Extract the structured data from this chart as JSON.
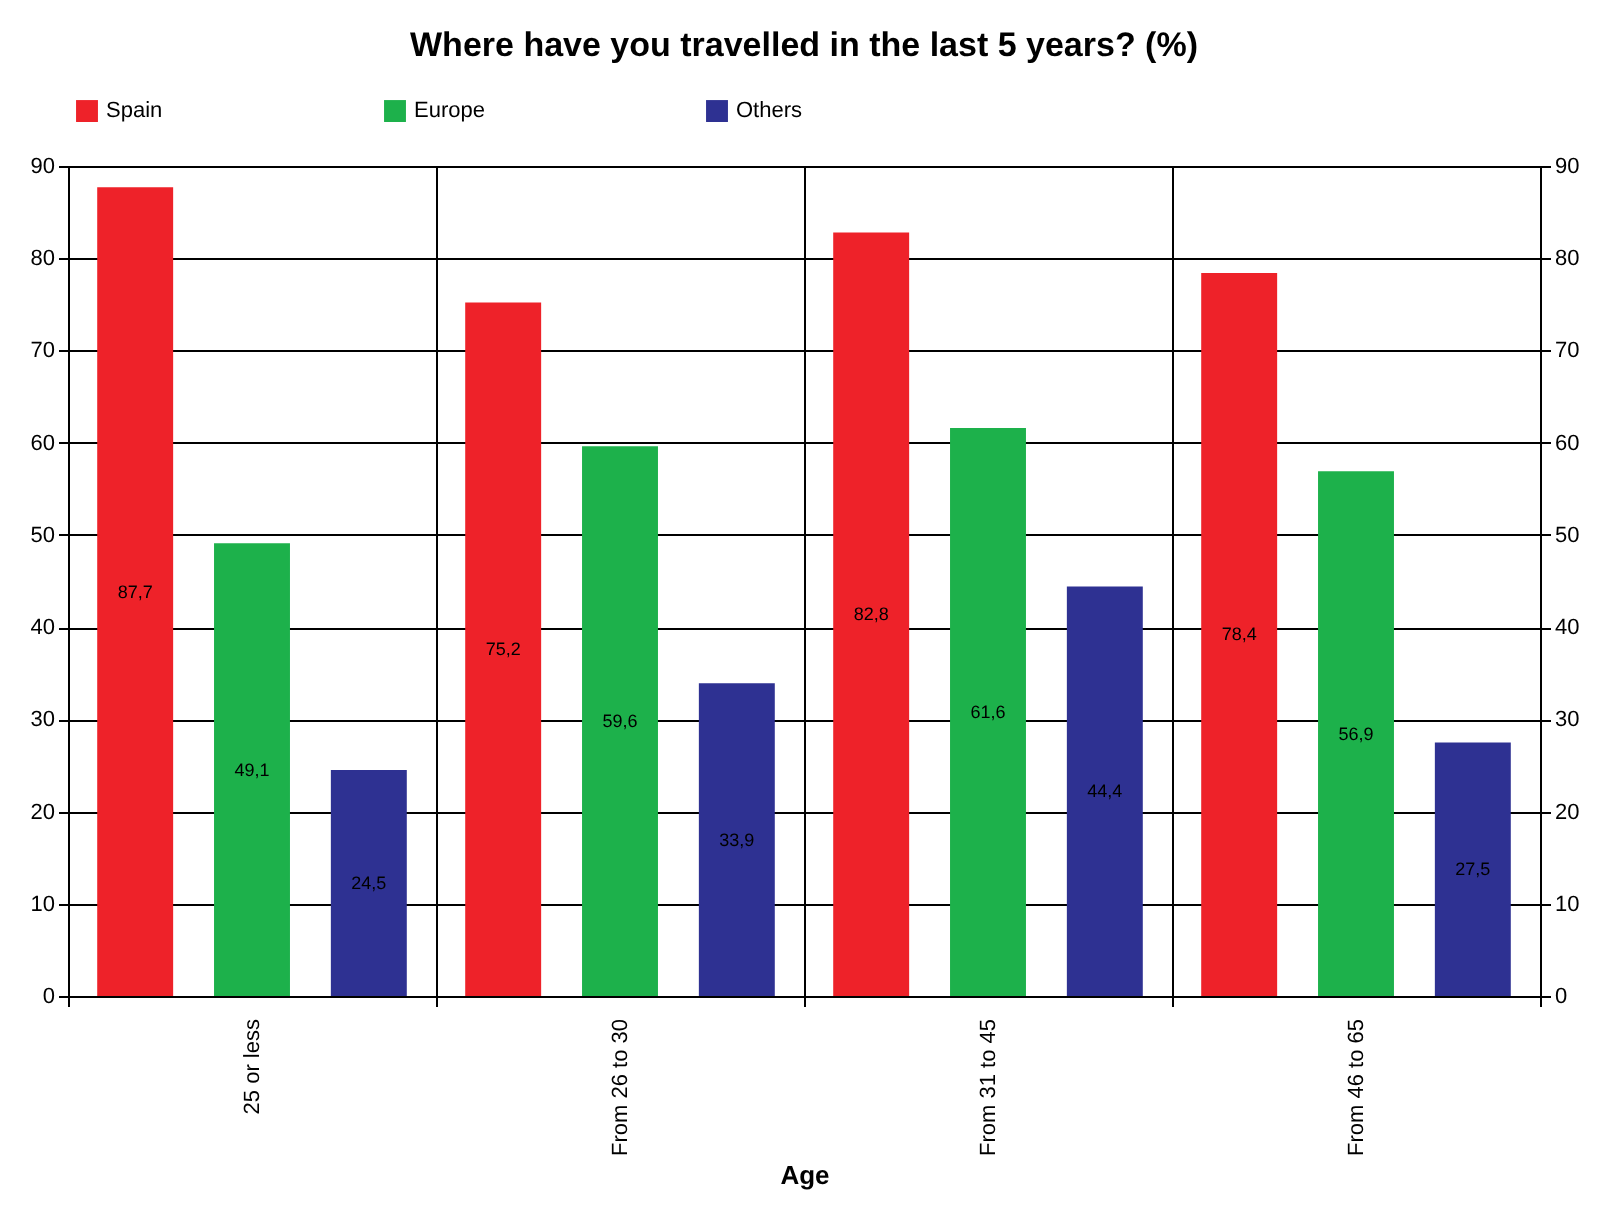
{
  "chart_data": {
    "type": "bar",
    "title": "Where have you travelled in the last 5 years? (%)",
    "xlabel": "Age",
    "categories": [
      "25 or less",
      "From 26 to 30",
      "From 31 to 45",
      "From 46 to 65"
    ],
    "series": [
      {
        "name": "Spain",
        "color": "#ee2229",
        "values": [
          87.7,
          75.2,
          82.8,
          78.4
        ],
        "value_labels": [
          "87,7",
          "75,2",
          "82,8",
          "78,4"
        ]
      },
      {
        "name": "Europe",
        "color": "#1db14b",
        "values": [
          49.1,
          59.6,
          61.6,
          56.9
        ],
        "value_labels": [
          "49,1",
          "59,6",
          "61,6",
          "56,9"
        ]
      },
      {
        "name": "Others",
        "color": "#2e3192",
        "values": [
          24.5,
          33.9,
          44.4,
          27.5
        ],
        "value_labels": [
          "24,5",
          "33,9",
          "44,4",
          "27,5"
        ]
      }
    ],
    "ylim": [
      0,
      90
    ],
    "yticks": [
      0,
      10,
      20,
      30,
      40,
      50,
      60,
      70,
      80,
      90
    ],
    "y2lim": [
      0,
      90
    ],
    "y2ticks": [
      0,
      10,
      20,
      30,
      40,
      50,
      60,
      70,
      80,
      90
    ],
    "grid": true,
    "legend": "top"
  }
}
